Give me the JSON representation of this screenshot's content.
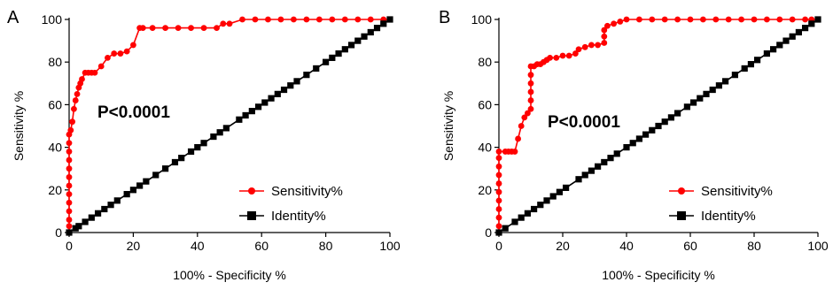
{
  "colors": {
    "sensitivity": "#ff0000",
    "identity": "#000000",
    "axis": "#000000"
  },
  "chart_data": [
    {
      "type": "line",
      "panel": "A",
      "annotation": "P<0.0001",
      "xlabel": "100% - Specificity %",
      "ylabel": "Sensitivity %",
      "xlim": [
        0,
        100
      ],
      "ylim": [
        0,
        100
      ],
      "xticks": [
        0,
        20,
        40,
        60,
        80,
        100
      ],
      "yticks": [
        0,
        20,
        40,
        60,
        80,
        100
      ],
      "legend_position": "bottom-right",
      "series": [
        {
          "name": "Sensitivity%",
          "color": "#ff0000",
          "marker": "circle",
          "points": [
            [
              0,
              0
            ],
            [
              0,
              3
            ],
            [
              0,
              6
            ],
            [
              0,
              10
            ],
            [
              0,
              14
            ],
            [
              0,
              18
            ],
            [
              0,
              22
            ],
            [
              0,
              26
            ],
            [
              0,
              30
            ],
            [
              0,
              34
            ],
            [
              0,
              38
            ],
            [
              0,
              42
            ],
            [
              0,
              46
            ],
            [
              0.5,
              48
            ],
            [
              1,
              52
            ],
            [
              1.5,
              58
            ],
            [
              2,
              62
            ],
            [
              2.5,
              65
            ],
            [
              3,
              68
            ],
            [
              3.5,
              70
            ],
            [
              4,
              72
            ],
            [
              5,
              75
            ],
            [
              6,
              75
            ],
            [
              7,
              75
            ],
            [
              8,
              75
            ],
            [
              10,
              78
            ],
            [
              12,
              82
            ],
            [
              14,
              84
            ],
            [
              16,
              84
            ],
            [
              18,
              85
            ],
            [
              20,
              88
            ],
            [
              22,
              96
            ],
            [
              23,
              96
            ],
            [
              26,
              96
            ],
            [
              30,
              96
            ],
            [
              34,
              96
            ],
            [
              38,
              96
            ],
            [
              42,
              96
            ],
            [
              46,
              96
            ],
            [
              48,
              98
            ],
            [
              50,
              98
            ],
            [
              54,
              100
            ],
            [
              58,
              100
            ],
            [
              62,
              100
            ],
            [
              66,
              100
            ],
            [
              70,
              100
            ],
            [
              74,
              100
            ],
            [
              78,
              100
            ],
            [
              82,
              100
            ],
            [
              86,
              100
            ],
            [
              90,
              100
            ],
            [
              94,
              100
            ],
            [
              98,
              100
            ],
            [
              100,
              100
            ]
          ]
        },
        {
          "name": "Identity%",
          "color": "#000000",
          "marker": "square",
          "points": [
            [
              0,
              0
            ],
            [
              2,
              2
            ],
            [
              3,
              3
            ],
            [
              5,
              5
            ],
            [
              7,
              7
            ],
            [
              9,
              9
            ],
            [
              11,
              11
            ],
            [
              13,
              13
            ],
            [
              15,
              15
            ],
            [
              18,
              18
            ],
            [
              20,
              20
            ],
            [
              22,
              22
            ],
            [
              24,
              24
            ],
            [
              27,
              27
            ],
            [
              30,
              30
            ],
            [
              33,
              33
            ],
            [
              35,
              35
            ],
            [
              38,
              38
            ],
            [
              40,
              40
            ],
            [
              42,
              42
            ],
            [
              45,
              45
            ],
            [
              47,
              47
            ],
            [
              49,
              49
            ],
            [
              53,
              53
            ],
            [
              55,
              55
            ],
            [
              57,
              57
            ],
            [
              59,
              59
            ],
            [
              61,
              61
            ],
            [
              63,
              63
            ],
            [
              65,
              65
            ],
            [
              67,
              67
            ],
            [
              69,
              69
            ],
            [
              71,
              71
            ],
            [
              74,
              74
            ],
            [
              77,
              77
            ],
            [
              80,
              80
            ],
            [
              82,
              82
            ],
            [
              84,
              84
            ],
            [
              86,
              86
            ],
            [
              88,
              88
            ],
            [
              90,
              90
            ],
            [
              92,
              92
            ],
            [
              94,
              94
            ],
            [
              96,
              96
            ],
            [
              98,
              98
            ],
            [
              100,
              100
            ]
          ]
        }
      ]
    },
    {
      "type": "line",
      "panel": "B",
      "annotation": "P<0.0001",
      "xlabel": "100% - Specificity %",
      "ylabel": "Sensitivity %",
      "xlim": [
        0,
        100
      ],
      "ylim": [
        0,
        100
      ],
      "xticks": [
        0,
        20,
        40,
        60,
        80,
        100
      ],
      "yticks": [
        0,
        20,
        40,
        60,
        80,
        100
      ],
      "legend_position": "bottom-right",
      "series": [
        {
          "name": "Sensitivity%",
          "color": "#ff0000",
          "marker": "circle",
          "points": [
            [
              0,
              0
            ],
            [
              0,
              3
            ],
            [
              0,
              7
            ],
            [
              0,
              11
            ],
            [
              0,
              15
            ],
            [
              0,
              19
            ],
            [
              0,
              23
            ],
            [
              0,
              27
            ],
            [
              0,
              31
            ],
            [
              0,
              35
            ],
            [
              0,
              38
            ],
            [
              2,
              38
            ],
            [
              3,
              38
            ],
            [
              4,
              38
            ],
            [
              5,
              38
            ],
            [
              6,
              44
            ],
            [
              7,
              50
            ],
            [
              8,
              54
            ],
            [
              9,
              56
            ],
            [
              10,
              58
            ],
            [
              10,
              62
            ],
            [
              10,
              66
            ],
            [
              10,
              70
            ],
            [
              10,
              74
            ],
            [
              10,
              78
            ],
            [
              11,
              78
            ],
            [
              12,
              79
            ],
            [
              13,
              79
            ],
            [
              14,
              80
            ],
            [
              15,
              81
            ],
            [
              16,
              82
            ],
            [
              18,
              82
            ],
            [
              20,
              83
            ],
            [
              22,
              83
            ],
            [
              24,
              84
            ],
            [
              25,
              86
            ],
            [
              27,
              87
            ],
            [
              29,
              88
            ],
            [
              31,
              88
            ],
            [
              33,
              89
            ],
            [
              33,
              92
            ],
            [
              33,
              95
            ],
            [
              34,
              97
            ],
            [
              36,
              98
            ],
            [
              38,
              99
            ],
            [
              40,
              100
            ],
            [
              44,
              100
            ],
            [
              48,
              100
            ],
            [
              52,
              100
            ],
            [
              56,
              100
            ],
            [
              60,
              100
            ],
            [
              64,
              100
            ],
            [
              68,
              100
            ],
            [
              72,
              100
            ],
            [
              76,
              100
            ],
            [
              80,
              100
            ],
            [
              84,
              100
            ],
            [
              88,
              100
            ],
            [
              92,
              100
            ],
            [
              96,
              100
            ],
            [
              98,
              100
            ],
            [
              100,
              100
            ]
          ]
        },
        {
          "name": "Identity%",
          "color": "#000000",
          "marker": "square",
          "points": [
            [
              0,
              0
            ],
            [
              2,
              2
            ],
            [
              5,
              5
            ],
            [
              7,
              7
            ],
            [
              9,
              9
            ],
            [
              11,
              11
            ],
            [
              13,
              13
            ],
            [
              15,
              15
            ],
            [
              17,
              17
            ],
            [
              19,
              19
            ],
            [
              21,
              21
            ],
            [
              25,
              25
            ],
            [
              27,
              27
            ],
            [
              29,
              29
            ],
            [
              31,
              31
            ],
            [
              33,
              33
            ],
            [
              35,
              35
            ],
            [
              37,
              37
            ],
            [
              40,
              40
            ],
            [
              42,
              42
            ],
            [
              44,
              44
            ],
            [
              46,
              46
            ],
            [
              48,
              48
            ],
            [
              50,
              50
            ],
            [
              52,
              52
            ],
            [
              54,
              54
            ],
            [
              56,
              56
            ],
            [
              59,
              59
            ],
            [
              61,
              61
            ],
            [
              63,
              63
            ],
            [
              65,
              65
            ],
            [
              67,
              67
            ],
            [
              69,
              69
            ],
            [
              71,
              71
            ],
            [
              74,
              74
            ],
            [
              77,
              77
            ],
            [
              79,
              79
            ],
            [
              81,
              81
            ],
            [
              84,
              84
            ],
            [
              86,
              86
            ],
            [
              88,
              88
            ],
            [
              90,
              90
            ],
            [
              92,
              92
            ],
            [
              94,
              94
            ],
            [
              96,
              96
            ],
            [
              98,
              98
            ],
            [
              100,
              100
            ]
          ]
        }
      ]
    }
  ]
}
